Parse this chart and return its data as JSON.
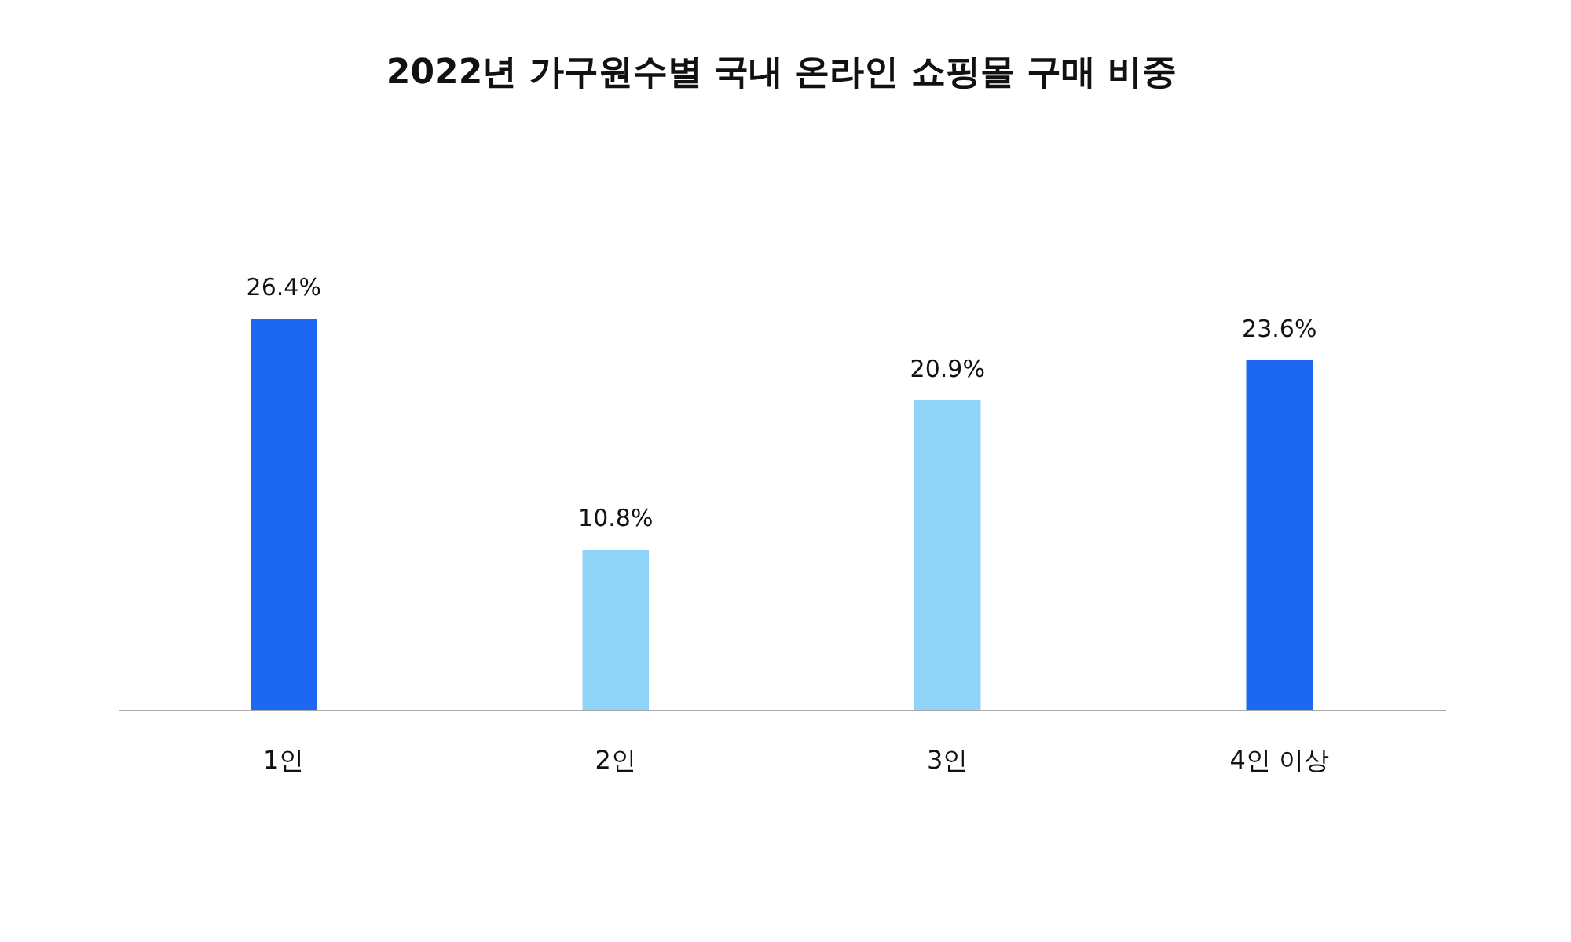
{
  "chart_data": {
    "type": "bar",
    "title": "2022년 가구원수별 국내 온라인 쇼핑몰 구매 비중",
    "categories": [
      "1인",
      "2인",
      "3인",
      "4인 이상"
    ],
    "values": [
      26.4,
      10.8,
      20.9,
      23.6
    ],
    "colors": [
      "#1c68f2",
      "#8fd3f8",
      "#8fd3f8",
      "#1c68f2"
    ],
    "value_labels": [
      "26.4%",
      "10.8%",
      "20.9%",
      "23.6%"
    ]
  }
}
